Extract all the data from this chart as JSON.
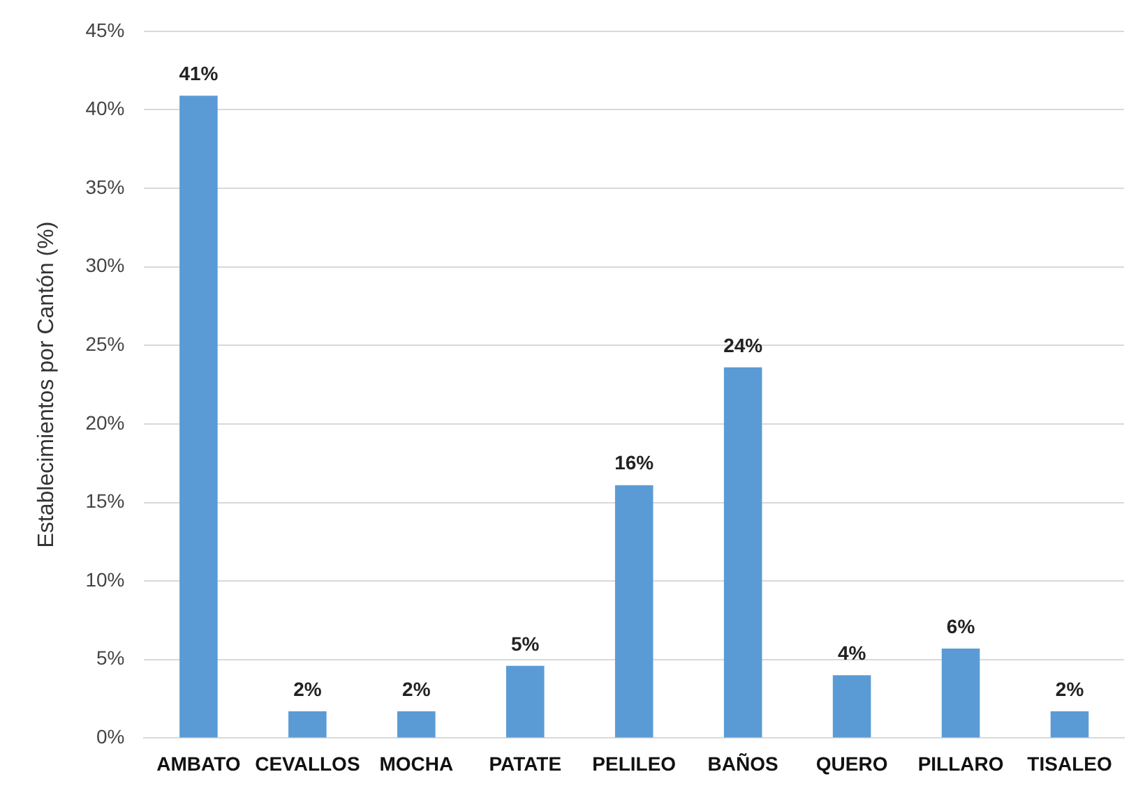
{
  "chart_data": {
    "type": "bar",
    "ylabel": "Establecimientos por Cantón (%)",
    "categories": [
      "AMBATO",
      "CEVALLOS",
      "MOCHA",
      "PATATE",
      "PELILEO",
      "BAÑOS",
      "QUERO",
      "PILLARO",
      "TISALEO"
    ],
    "values": [
      40.9,
      1.7,
      1.7,
      4.6,
      16.1,
      23.6,
      4.0,
      5.7,
      1.7
    ],
    "value_labels": [
      "41%",
      "2%",
      "2%",
      "5%",
      "16%",
      "24%",
      "4%",
      "6%",
      "2%"
    ],
    "color": "#5b9bd5",
    "ylim": [
      0,
      45
    ],
    "yticks": [
      {
        "value": 0,
        "label": "0%"
      },
      {
        "value": 5,
        "label": "5%"
      },
      {
        "value": 10,
        "label": "10%"
      },
      {
        "value": 15,
        "label": "15%"
      },
      {
        "value": 20,
        "label": "20%"
      },
      {
        "value": 25,
        "label": "25%"
      },
      {
        "value": 30,
        "label": "30%"
      },
      {
        "value": 35,
        "label": "35%"
      },
      {
        "value": 40,
        "label": "40%"
      },
      {
        "value": 45,
        "label": "45%"
      }
    ],
    "grid": "y",
    "legend": false
  }
}
